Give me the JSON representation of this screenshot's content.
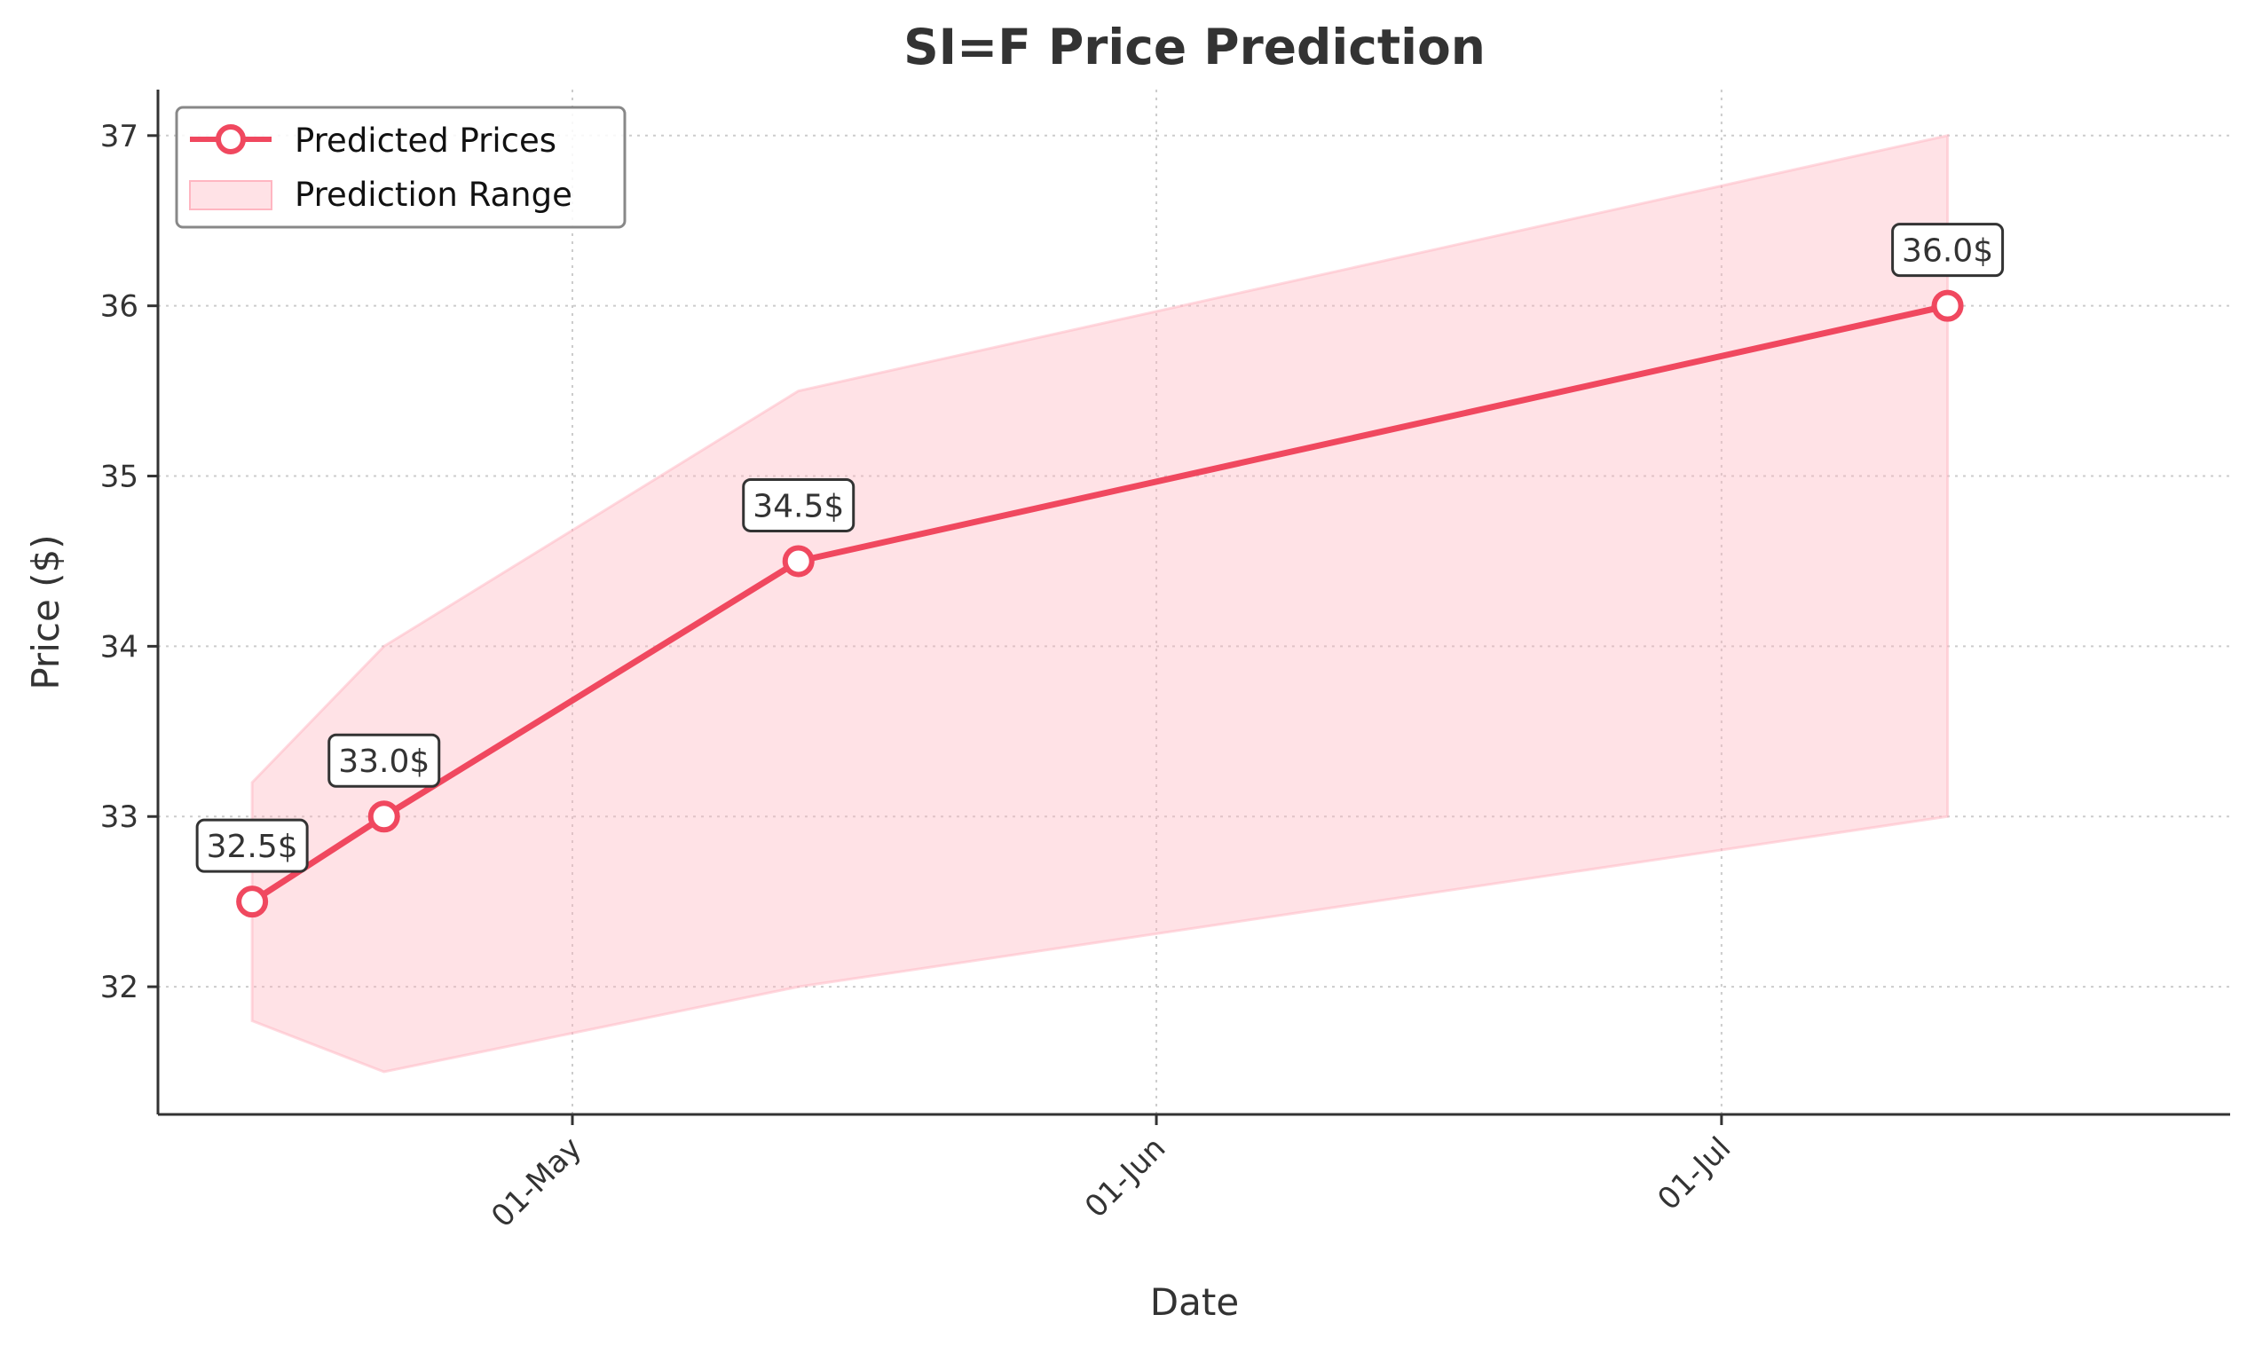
{
  "chart_data": {
    "type": "line",
    "title": "SI=F Price Prediction",
    "xlabel": "Date",
    "ylabel": "Price ($)",
    "x_ticks": [
      {
        "date": "2025-05-01",
        "label": "01-May"
      },
      {
        "date": "2025-06-01",
        "label": "01-Jun"
      },
      {
        "date": "2025-07-01",
        "label": "01-Jul"
      }
    ],
    "y_ticks": [
      32,
      33,
      34,
      35,
      36,
      37
    ],
    "xlim": [
      "2025-04-09",
      "2025-07-28"
    ],
    "ylim": [
      31.25,
      37.27
    ],
    "grid": true,
    "legend_position": "top-left",
    "series": [
      {
        "name": "Predicted Prices",
        "type": "line",
        "color": "#f0485f",
        "x": [
          "2025-04-14",
          "2025-04-21",
          "2025-05-13",
          "2025-07-13"
        ],
        "values": [
          32.5,
          33.0,
          34.5,
          36.0
        ],
        "data_labels": [
          "32.5$",
          "33.0$",
          "34.5$",
          "36.0$"
        ]
      },
      {
        "name": "Prediction Range",
        "type": "area",
        "color": "#ffb6c1",
        "x": [
          "2025-04-14",
          "2025-04-21",
          "2025-05-13",
          "2025-07-13"
        ],
        "upper": [
          33.2,
          34.0,
          35.5,
          37.0
        ],
        "lower": [
          31.8,
          31.5,
          32.0,
          33.0
        ]
      }
    ]
  }
}
